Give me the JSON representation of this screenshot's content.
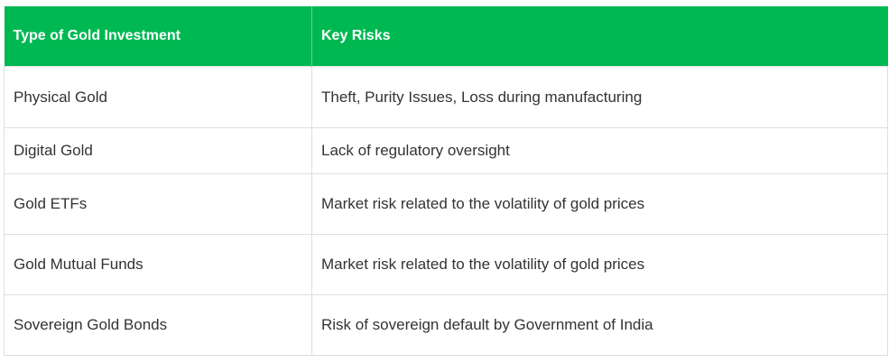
{
  "table": {
    "headers": [
      "Type of Gold Investment",
      "Key Risks"
    ],
    "rows": [
      [
        "Physical Gold",
        "Theft, Purity Issues, Loss during manufacturing"
      ],
      [
        "Digital Gold",
        "Lack of regulatory oversight"
      ],
      [
        "Gold ETFs",
        "Market risk related to the volatility of gold prices"
      ],
      [
        "Gold Mutual Funds",
        "Market risk related to the volatility of gold prices"
      ],
      [
        "Sovereign Gold Bonds",
        "Risk of sovereign default by Government of India"
      ]
    ]
  },
  "colors": {
    "header_bg": "#00b852",
    "header_text": "#ffffff",
    "body_text": "#333333",
    "border": "#dedede"
  }
}
